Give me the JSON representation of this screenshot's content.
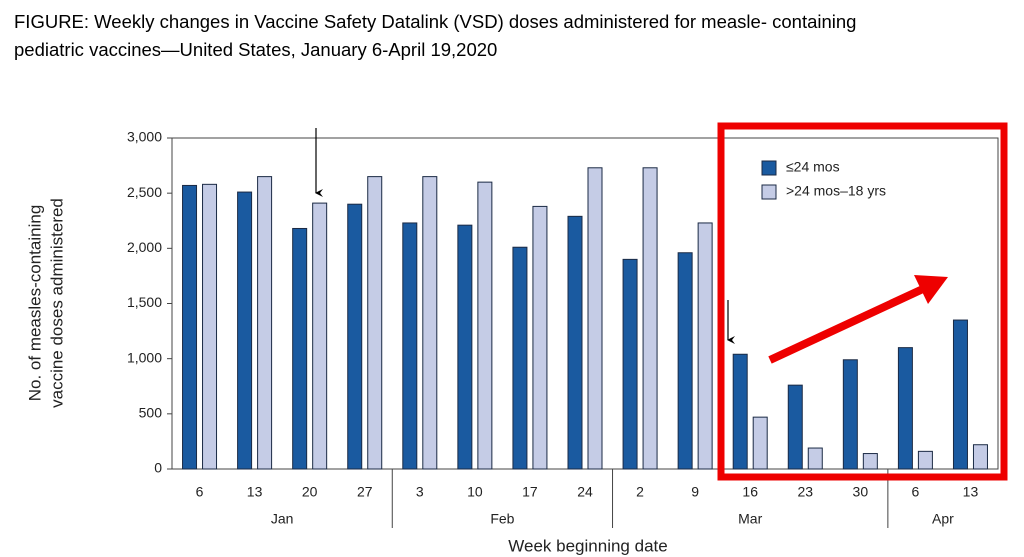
{
  "chart_data": {
    "type": "bar",
    "title": [
      "FIGURE: Weekly changes in Vaccine Safety Datalink (VSD) doses administered for measle- containing",
      "pediatric vaccines—United States, January 6-April 19,2020"
    ],
    "categories": [
      "6",
      "13",
      "20",
      "27",
      "3",
      "10",
      "17",
      "24",
      "2",
      "9",
      "16",
      "23",
      "30",
      "6",
      "13"
    ],
    "groups": [
      {
        "label": "Jan",
        "span": 4
      },
      {
        "label": "Feb",
        "span": 4
      },
      {
        "label": "Mar",
        "span": 5
      },
      {
        "label": "Apr",
        "span": 2
      }
    ],
    "series": [
      {
        "name": "≤24 mos",
        "color": "#1a5aa0",
        "values": [
          2570,
          2510,
          2180,
          2400,
          2230,
          2210,
          2010,
          2290,
          1900,
          1960,
          1040,
          760,
          990,
          1100,
          1350
        ]
      },
      {
        "name": ">24 mos–18 yrs",
        "color": "#c5cce6",
        "values": [
          2580,
          2650,
          2410,
          2650,
          2650,
          2600,
          2380,
          2730,
          2730,
          2230,
          470,
          190,
          140,
          160,
          220
        ]
      }
    ],
    "ylim": [
      0,
      3000
    ],
    "yticks": [
      0,
      500,
      {
        "value": 1000,
        "label": "1,000"
      },
      {
        "value": 1500,
        "label": "1,500"
      },
      {
        "value": 2000,
        "label": "2,000"
      },
      {
        "value": 2500,
        "label": "2,500"
      },
      {
        "value": 3000,
        "label": "3,000"
      }
    ],
    "y_label": [
      "No. of measles-containing",
      "vaccine doses administered"
    ],
    "x_label": "Week beginning date",
    "legend": "upper right"
  }
}
